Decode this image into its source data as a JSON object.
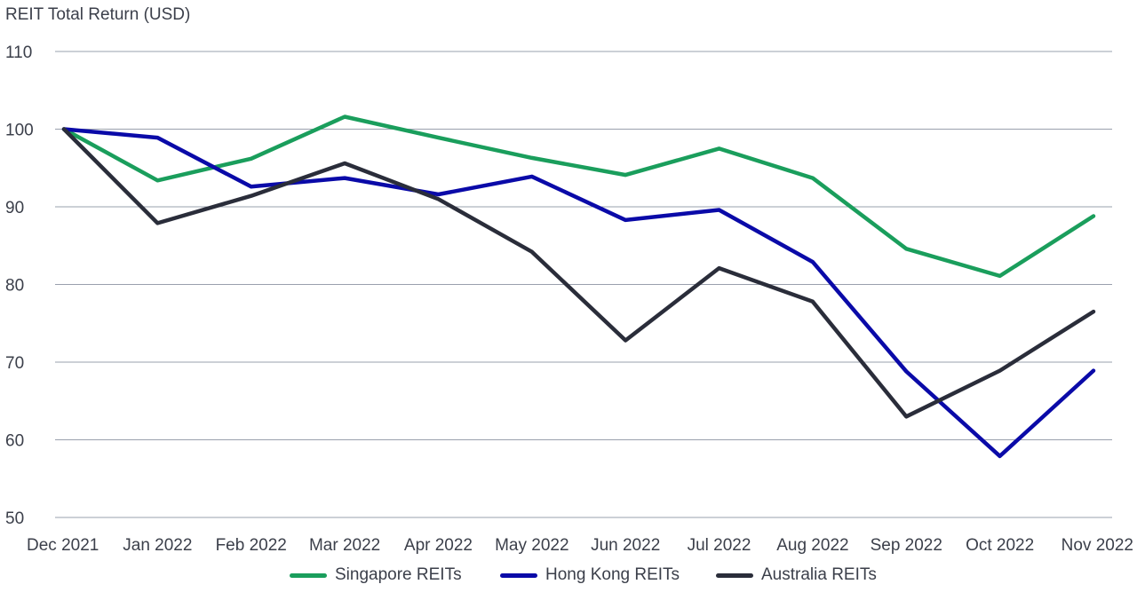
{
  "chart_data": {
    "type": "line",
    "ylabel": "REIT Total Return (USD)",
    "x": [
      "Dec 2021",
      "Jan 2022",
      "Feb 2022",
      "Mar 2022",
      "Apr 2022",
      "May 2022",
      "Jun 2022",
      "Jul 2022",
      "Aug 2022",
      "Sep 2022",
      "Oct 2022",
      "Nov 2022"
    ],
    "ylim": [
      50,
      110
    ],
    "yticks": [
      50,
      60,
      70,
      80,
      90,
      100,
      110
    ],
    "grid": true,
    "legend_position": "bottom",
    "series": [
      {
        "name": "Singapore REITs",
        "color": "#1a9e5c",
        "values": [
          100,
          93.4,
          96.2,
          101.6,
          98.9,
          96.3,
          94.1,
          97.5,
          93.7,
          84.6,
          81.1,
          88.8
        ]
      },
      {
        "name": "Hong Kong REITs",
        "color": "#0a0aa8",
        "values": [
          100,
          98.9,
          92.6,
          93.7,
          91.6,
          93.9,
          88.3,
          89.6,
          82.9,
          68.8,
          57.9,
          68.9
        ]
      },
      {
        "name": "Australia REITs",
        "color": "#2a2d3a",
        "values": [
          100,
          87.9,
          91.4,
          95.6,
          91.0,
          84.2,
          72.8,
          82.1,
          77.8,
          63.0,
          68.9,
          76.5
        ]
      }
    ]
  }
}
